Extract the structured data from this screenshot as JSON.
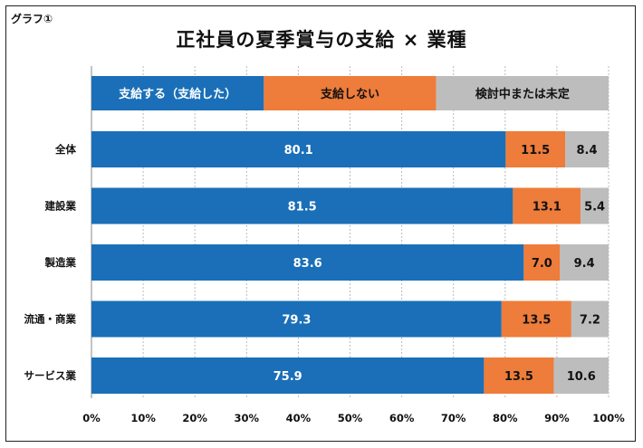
{
  "header": {
    "graph_label": "グラフ①",
    "title": "正社員の夏季賞与の支給 × 業種"
  },
  "colors": {
    "paid": "#1a6fb8",
    "not_paid": "#ee7c3a",
    "undecided": "#bdbdbd"
  },
  "chart_data": {
    "type": "bar",
    "orientation": "horizontal",
    "stacked": true,
    "categories": [
      "全体",
      "建設業",
      "製造業",
      "流通・商業",
      "サービス業"
    ],
    "series": [
      {
        "name": "支給する（支給した）",
        "values": [
          80.1,
          81.5,
          83.6,
          79.3,
          75.9
        ]
      },
      {
        "name": "支給しない",
        "values": [
          11.5,
          13.1,
          7.0,
          13.5,
          13.5
        ]
      },
      {
        "name": "検討中または未定",
        "values": [
          8.4,
          5.4,
          9.4,
          7.2,
          10.6
        ]
      }
    ],
    "xlim": [
      0,
      100
    ],
    "x_ticks": [
      "0%",
      "10%",
      "20%",
      "30%",
      "40%",
      "50%",
      "60%",
      "70%",
      "80%",
      "90%",
      "100%"
    ],
    "grid": "vertical-dotted",
    "legend": "top"
  }
}
